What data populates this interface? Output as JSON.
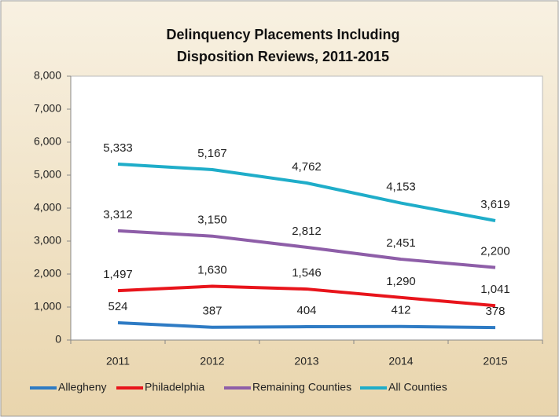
{
  "chart_data": {
    "type": "line",
    "title": "Delinquency Placements Including",
    "subtitle": "Disposition Reviews, 2011-2015",
    "categories": [
      "2011",
      "2012",
      "2013",
      "2014",
      "2015"
    ],
    "ylim": [
      0,
      8000
    ],
    "yticks": [
      0,
      {
        "value": 1000,
        "label": "1,000"
      },
      {
        "value": 2000,
        "label": "2,000"
      },
      {
        "value": 3000,
        "label": "3,000"
      },
      {
        "value": 4000,
        "label": "4,000"
      },
      {
        "value": 5000,
        "label": "5,000"
      },
      {
        "value": 6000,
        "label": "6,000"
      },
      {
        "value": 7000,
        "label": "7,000"
      },
      {
        "value": 8000,
        "label": "8,000"
      }
    ],
    "legend": "bottom",
    "series": [
      {
        "name": "Allegheny",
        "color": "#2e7bc4",
        "values": [
          524,
          387,
          404,
          412,
          378
        ]
      },
      {
        "name": "Philadelphia",
        "color": "#e8141b",
        "values": [
          1497,
          1630,
          1546,
          1290,
          1041
        ],
        "value_labels": [
          "1,497",
          "1,630",
          "1,546",
          "1,290",
          "1,041"
        ]
      },
      {
        "name": "Remaining Counties",
        "color": "#8e5ea8",
        "values": [
          3312,
          3150,
          2812,
          2451,
          2200
        ],
        "value_labels": [
          "3,312",
          "3,150",
          "2,812",
          "2,451",
          "2,200"
        ]
      },
      {
        "name": "All Counties",
        "color": "#1fadc9",
        "values": [
          5333,
          5167,
          4762,
          4153,
          3619
        ],
        "value_labels": [
          "5,333",
          "5,167",
          "4,762",
          "4,153",
          "3,619"
        ]
      }
    ]
  }
}
